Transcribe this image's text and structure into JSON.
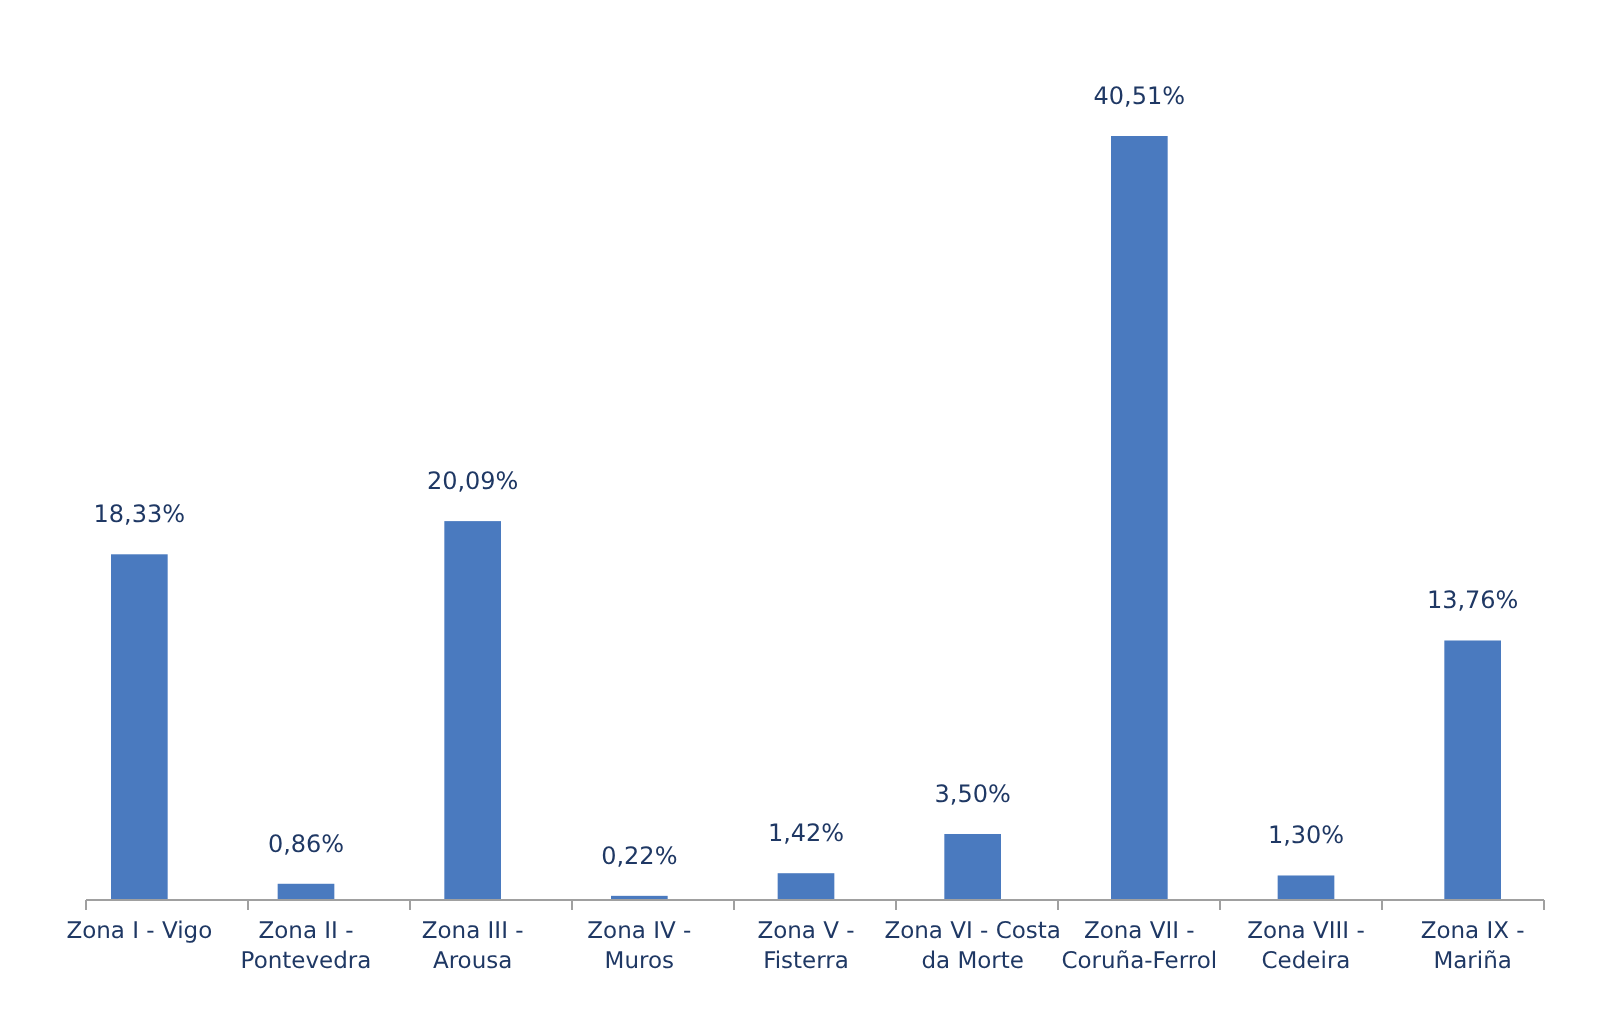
{
  "chart_data": {
    "type": "bar",
    "categories": [
      "Zona I - Vigo",
      "Zona II -\nPontevedra",
      "Zona III -\nArousa",
      "Zona IV -\nMuros",
      "Zona V -\nFisterra",
      "Zona VI - Costa\nda Morte",
      "Zona VII -\nCoruña-Ferrol",
      "Zona VIII -\nCedeira",
      "Zona IX -\nMariña"
    ],
    "values": [
      18.33,
      0.86,
      20.09,
      0.22,
      1.42,
      3.5,
      40.51,
      1.3,
      13.76
    ],
    "value_labels": [
      "18,33%",
      "0,86%",
      "20,09%",
      "0,22%",
      "1,42%",
      "3,50%",
      "40,51%",
      "1,30%",
      "13,76%"
    ],
    "color": "#4a7abf"
  }
}
